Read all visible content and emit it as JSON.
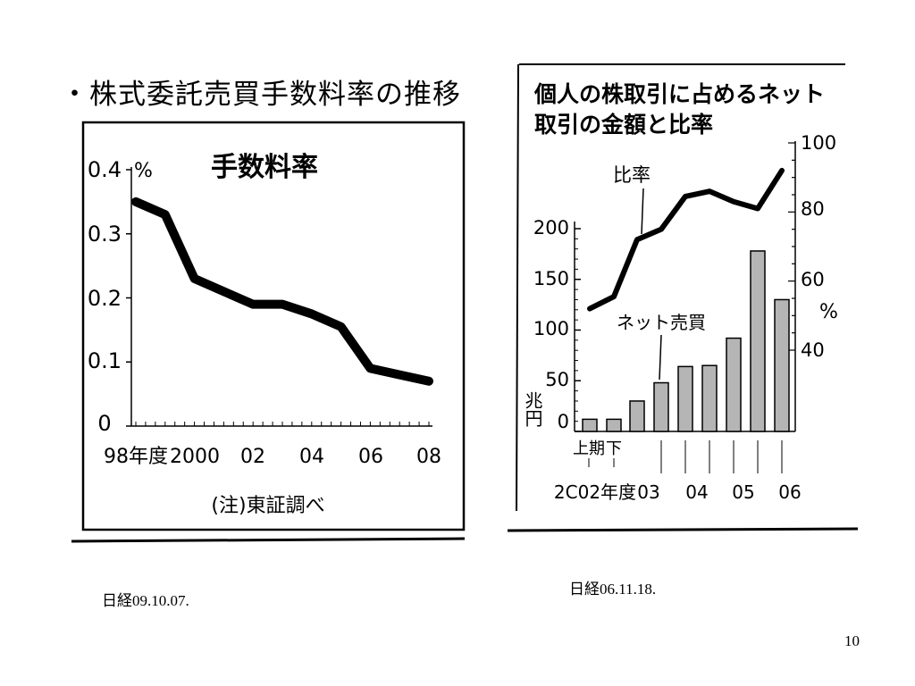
{
  "slide": {
    "title": "・株式委託売買手数料率の推移",
    "source_left": "日経09.10.07.",
    "source_right": "日経06.11.18.",
    "page_number": "10"
  },
  "chart_data": [
    {
      "type": "line",
      "title": "手数料率",
      "ylabel": "%",
      "note": "(注)東証調べ",
      "x": [
        1998,
        1999,
        2000,
        2001,
        2002,
        2003,
        2004,
        2005,
        2006,
        2007,
        2008
      ],
      "xtick_labels": [
        "98年度",
        "2000",
        "02",
        "04",
        "06",
        "08"
      ],
      "ytick_labels": [
        "0",
        "0.1",
        "0.2",
        "0.3",
        "0.4"
      ],
      "ylim": [
        0,
        0.4
      ],
      "series": [
        {
          "values": [
            0.35,
            0.33,
            0.23,
            0.21,
            0.19,
            0.19,
            0.175,
            0.155,
            0.09,
            0.08,
            0.07
          ]
        }
      ],
      "grid": false,
      "color": "#000000"
    },
    {
      "type": "bar",
      "title_line1": "個人の株取引に占めるネット",
      "title_line2": "取引の金額と比率",
      "categories": [
        "2002H1",
        "2002H2",
        "2003H1",
        "2003H2",
        "2004H1",
        "2004H2",
        "2005H1",
        "2005H2",
        "2006H1"
      ],
      "xtick_labels": [
        "上期",
        "下",
        "2C02年度",
        "03",
        "04",
        "05",
        "06"
      ],
      "left_axis_unit": "兆円",
      "left_ytick_labels": [
        "0",
        "50",
        "100",
        "150",
        "200"
      ],
      "left_ylim": [
        0,
        200
      ],
      "right_axis_unit": "%",
      "right_ytick_labels": [
        "40",
        "60",
        "80",
        "100"
      ],
      "right_ylim": [
        40,
        100
      ],
      "series": [
        {
          "name": "ネット売買",
          "kind": "bar",
          "axis": "left",
          "values": [
            12,
            12,
            30,
            48,
            64,
            65,
            92,
            178,
            130
          ]
        },
        {
          "name": "比率",
          "kind": "line",
          "axis": "right",
          "values": [
            52,
            55.5,
            72,
            75,
            84.5,
            86,
            83,
            81,
            92
          ]
        }
      ],
      "bar_color": "#b5b5b5",
      "line_color": "#000000",
      "grid": false
    }
  ]
}
